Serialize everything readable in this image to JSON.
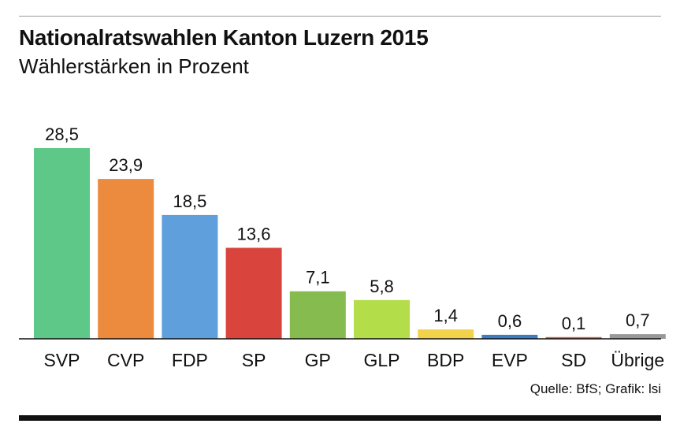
{
  "title": "Nationalratswahlen Kanton Luzern 2015",
  "subtitle": "Wählerstärken in Prozent",
  "source": "Quelle: BfS; Grafik: lsi",
  "chart_data": {
    "type": "bar",
    "title": "Nationalratswahlen Kanton Luzern 2015",
    "subtitle": "Wählerstärken in Prozent",
    "xlabel": "",
    "ylabel": "",
    "ylim": [
      0,
      28.5
    ],
    "grid": false,
    "legend": "none",
    "categories": [
      "SVP",
      "CVP",
      "FDP",
      "SP",
      "GP",
      "GLP",
      "BDP",
      "EVP",
      "SD",
      "Übrige"
    ],
    "values": [
      28.5,
      23.9,
      18.5,
      13.6,
      7.1,
      5.8,
      1.4,
      0.6,
      0.1,
      0.7
    ],
    "value_labels": [
      "28,5",
      "23,9",
      "18,5",
      "13,6",
      "7,1",
      "5,8",
      "1,4",
      "0,6",
      "0,1",
      "0,7"
    ],
    "colors": [
      "#5dc887",
      "#ec8b3e",
      "#5fa0dc",
      "#d9453c",
      "#85bb4f",
      "#b3dd49",
      "#f2d24b",
      "#3a7dc4",
      "#c9614a",
      "#999999"
    ]
  }
}
